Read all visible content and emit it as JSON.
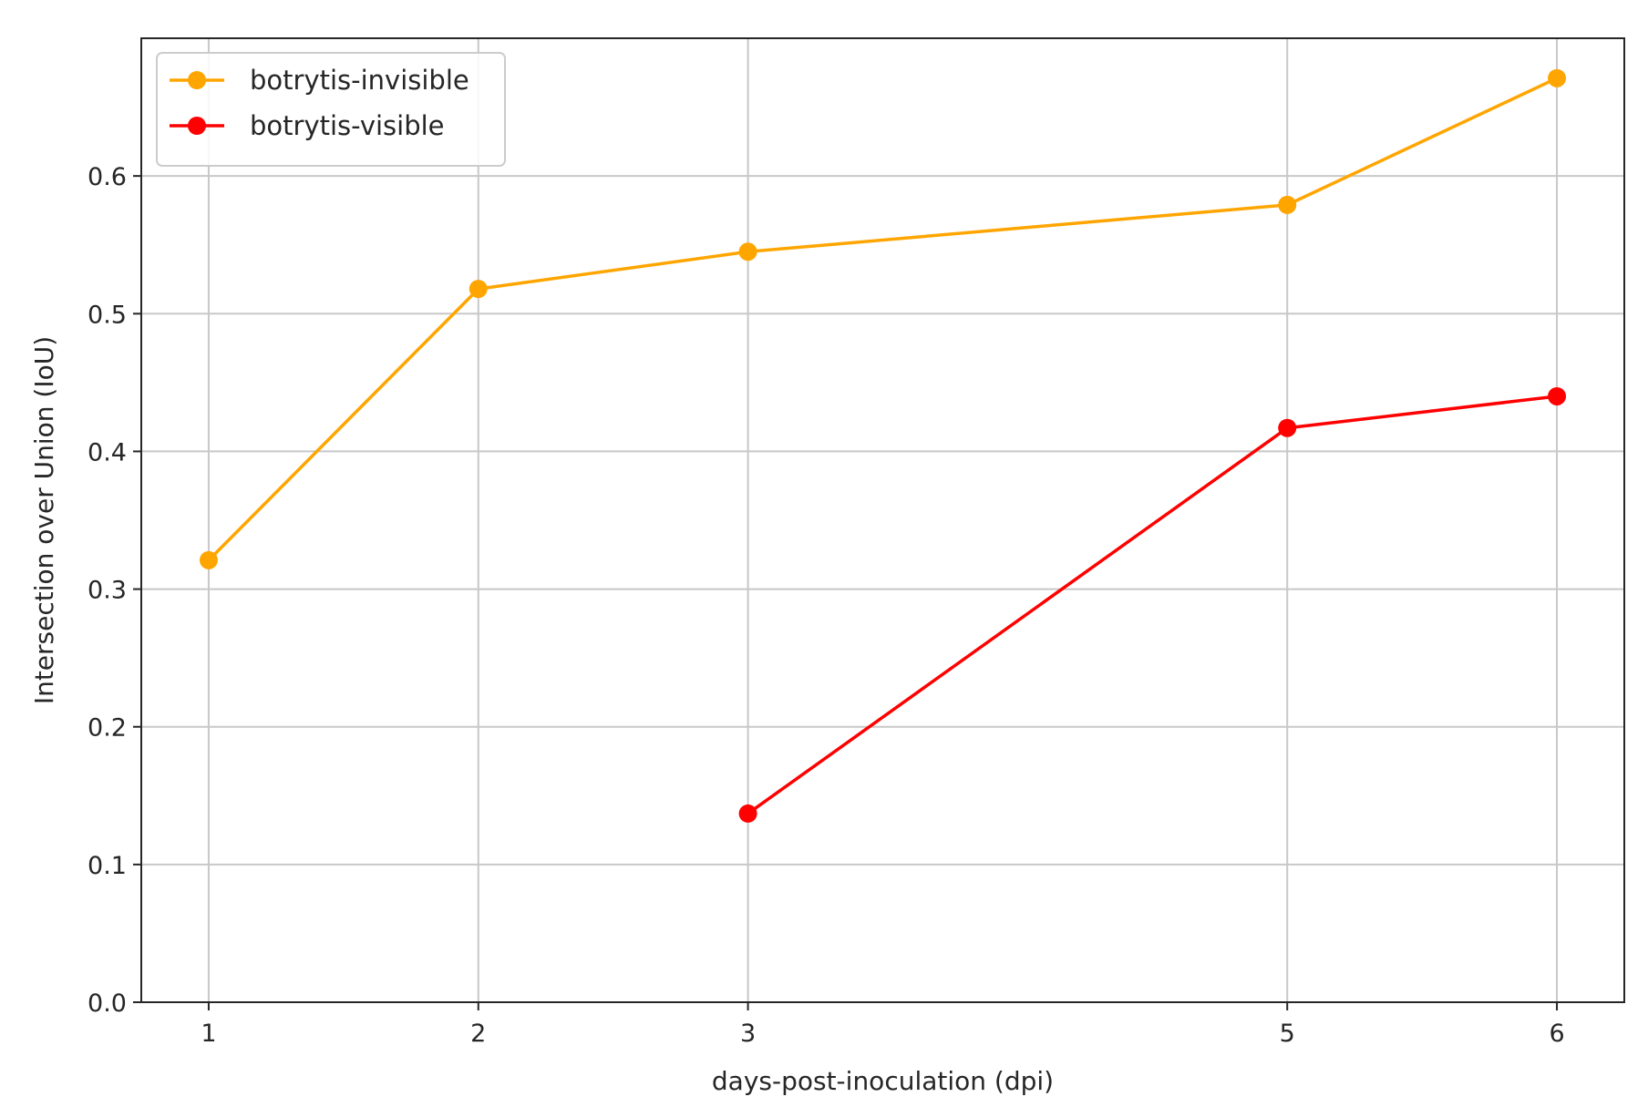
{
  "chart_data": {
    "type": "line",
    "title": "",
    "xlabel": "days-post-inoculation (dpi)",
    "ylabel": "Intersection over Union (IoU)",
    "xlim": [
      0.75,
      6.25
    ],
    "ylim": [
      0.0,
      0.7
    ],
    "xticks": [
      1,
      2,
      3,
      5,
      6
    ],
    "xtick_labels": [
      "1",
      "2",
      "3",
      "5",
      "6"
    ],
    "yticks": [
      0.0,
      0.1,
      0.2,
      0.3,
      0.4,
      0.5,
      0.6
    ],
    "ytick_labels": [
      "0.0",
      "0.1",
      "0.2",
      "0.3",
      "0.4",
      "0.5",
      "0.6"
    ],
    "grid": true,
    "legend_position": "top-left",
    "series": [
      {
        "name": "botrytis-invisible",
        "color": "#FFA500",
        "x": [
          1,
          2,
          3,
          5,
          6
        ],
        "values": [
          0.321,
          0.518,
          0.545,
          0.579,
          0.671
        ]
      },
      {
        "name": "botrytis-visible",
        "color": "#FF0000",
        "x": [
          3,
          5,
          6
        ],
        "values": [
          0.137,
          0.417,
          0.44
        ]
      }
    ]
  }
}
